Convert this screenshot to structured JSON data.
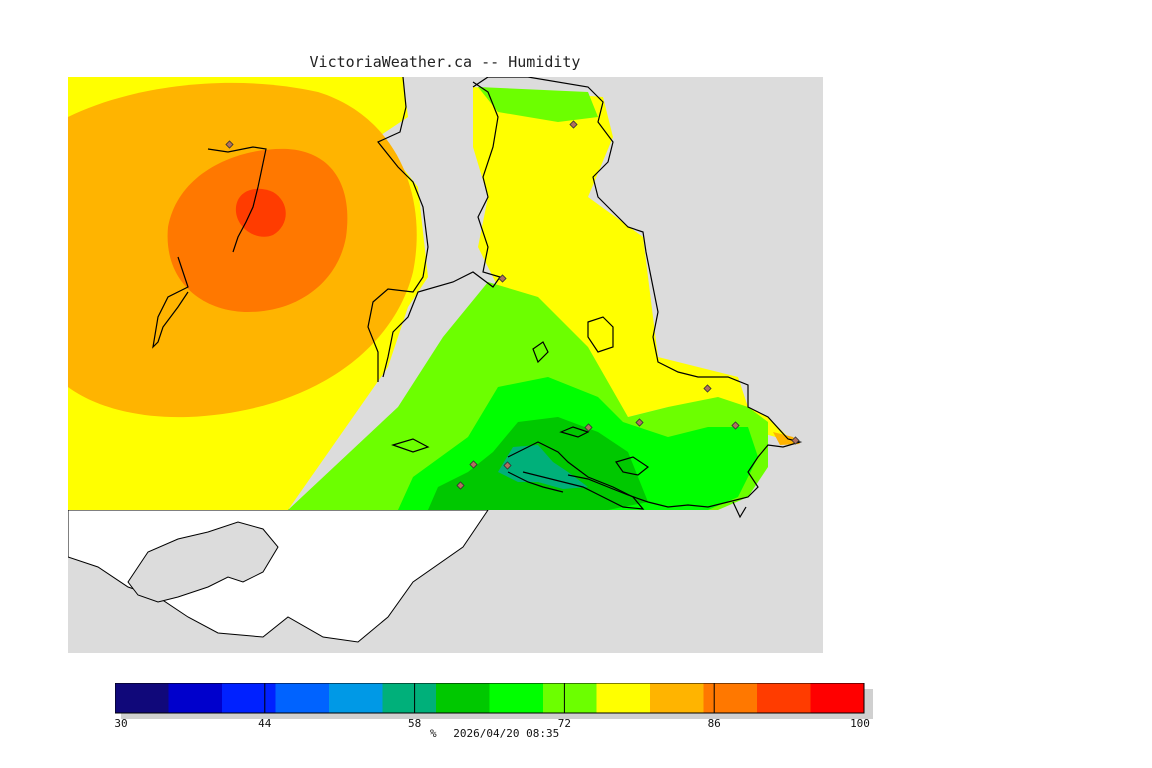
{
  "title": "VictoriaWeather.ca -- Humidity",
  "colorbar": {
    "ticks": [
      "30",
      "44",
      "58",
      "72",
      "86",
      "100"
    ],
    "colors": [
      "#10087a",
      "#0000cc",
      "#0021ff",
      "#0063ff",
      "#0099e6",
      "#00b07a",
      "#00c800",
      "#00ff00",
      "#6cff00",
      "#ffff00",
      "#ffb400",
      "#ff7800",
      "#ff3c00",
      "#ff0000"
    ]
  },
  "footer": {
    "unit": "%",
    "timestamp": "2026/04/20 08:35"
  },
  "palette": {
    "land_grey": "#dcdcdc",
    "coast": "#000000",
    "station": "#b07060"
  }
}
